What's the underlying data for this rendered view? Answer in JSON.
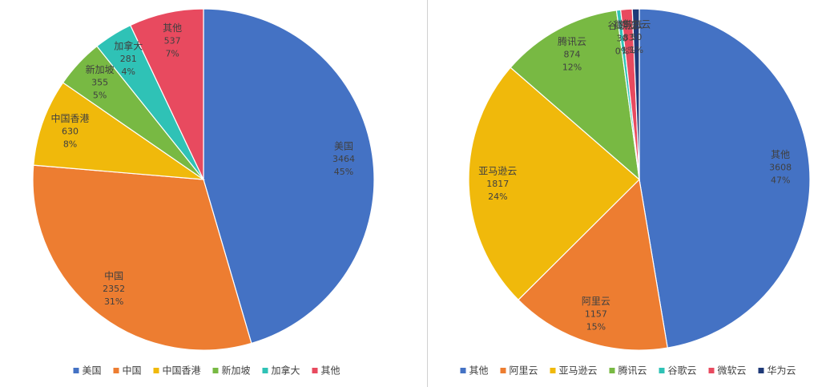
{
  "chart_data": [
    {
      "type": "pie",
      "categories": [
        "美国",
        "中国",
        "中国香港",
        "新加坡",
        "加拿大",
        "其他"
      ],
      "values": [
        3464,
        2352,
        630,
        355,
        281,
        537
      ],
      "percent_labels": [
        "45%",
        "31%",
        "8%",
        "5%",
        "4%",
        "7%"
      ],
      "colors": [
        "#4472c4",
        "#ed7d31",
        "#f0b90b",
        "#78b943",
        "#2fc2b6",
        "#e84a5f"
      ],
      "legend": "bottom"
    },
    {
      "type": "pie",
      "categories": [
        "其他",
        "阿里云",
        "亚马逊云",
        "腾讯云",
        "谷歌云",
        "微软云",
        "华为云"
      ],
      "values": [
        3608,
        1157,
        1817,
        874,
        30,
        83,
        50
      ],
      "percent_labels": [
        "47%",
        "15%",
        "24%",
        "12%",
        "0%",
        "1%",
        "1%"
      ],
      "colors": [
        "#4472c4",
        "#ed7d31",
        "#f0b90b",
        "#78b943",
        "#2fc2b6",
        "#e84a5f",
        "#1f3a78"
      ],
      "legend": "bottom"
    }
  ]
}
